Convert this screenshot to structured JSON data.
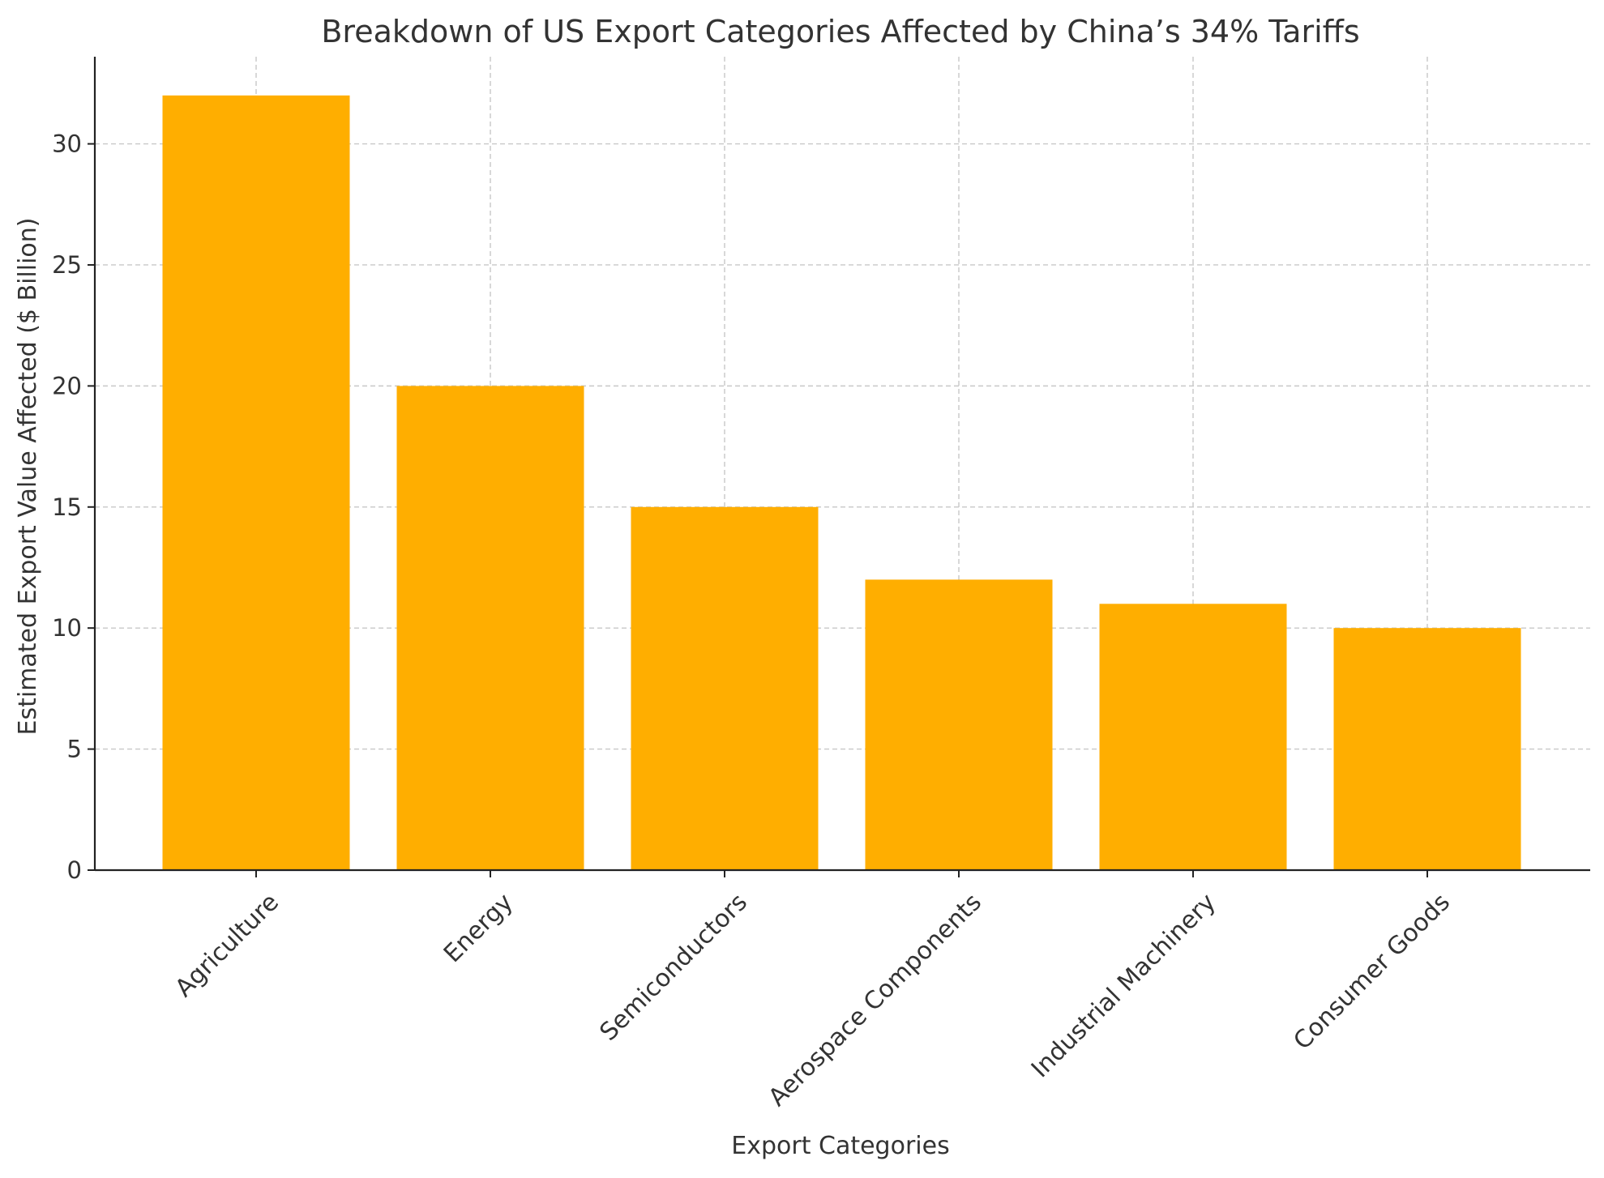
{
  "chart_data": {
    "type": "bar",
    "title": "Breakdown of US Export Categories Affected by China’s 34% Tariffs",
    "xlabel": "Export Categories",
    "ylabel": "Estimated Export Value Affected ($ Billion)",
    "categories": [
      "Agriculture",
      "Energy",
      "Semiconductors",
      "Aerospace Components",
      "Industrial Machinery",
      "Consumer Goods"
    ],
    "values": [
      32,
      20,
      15,
      12,
      11,
      10
    ],
    "ylim": [
      0,
      33.6
    ],
    "yticks": [
      0,
      5,
      10,
      15,
      20,
      25,
      30
    ],
    "grid": true,
    "legend": "none",
    "bar_color": "#FFAE00",
    "grid_color": "#c8c8c8",
    "axis_color": "#222222"
  }
}
